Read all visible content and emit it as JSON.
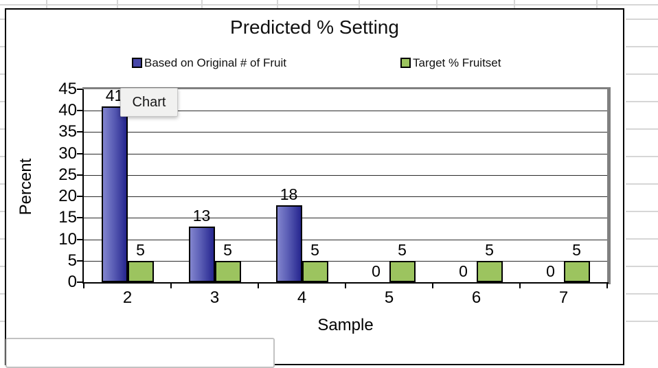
{
  "tooltip": {
    "label": "Chart"
  },
  "colors": {
    "series1_gradient": [
      "#8285ce",
      "#5a5db5",
      "#26268e"
    ],
    "series1_legend": "#4747a8",
    "series2_fill": "#9cc45f",
    "gridline": "#2a2a2a",
    "plot_shadow": "#808080",
    "sheet_line": "#d6d6d6"
  },
  "chart_data": {
    "type": "bar",
    "title": "Predicted % Setting",
    "xlabel": "Sample",
    "ylabel": "Percent",
    "categories": [
      "2",
      "3",
      "4",
      "5",
      "6",
      "7"
    ],
    "series": [
      {
        "name": "Based on Original # of Fruit",
        "values": [
          41,
          13,
          18,
          0,
          0,
          0
        ]
      },
      {
        "name": "Target % Fruitset",
        "values": [
          5,
          5,
          5,
          5,
          5,
          5
        ]
      }
    ],
    "data_labels": true,
    "ylim": [
      0,
      45
    ],
    "ytick_step": 5,
    "grid": true,
    "legend_position": "top"
  }
}
